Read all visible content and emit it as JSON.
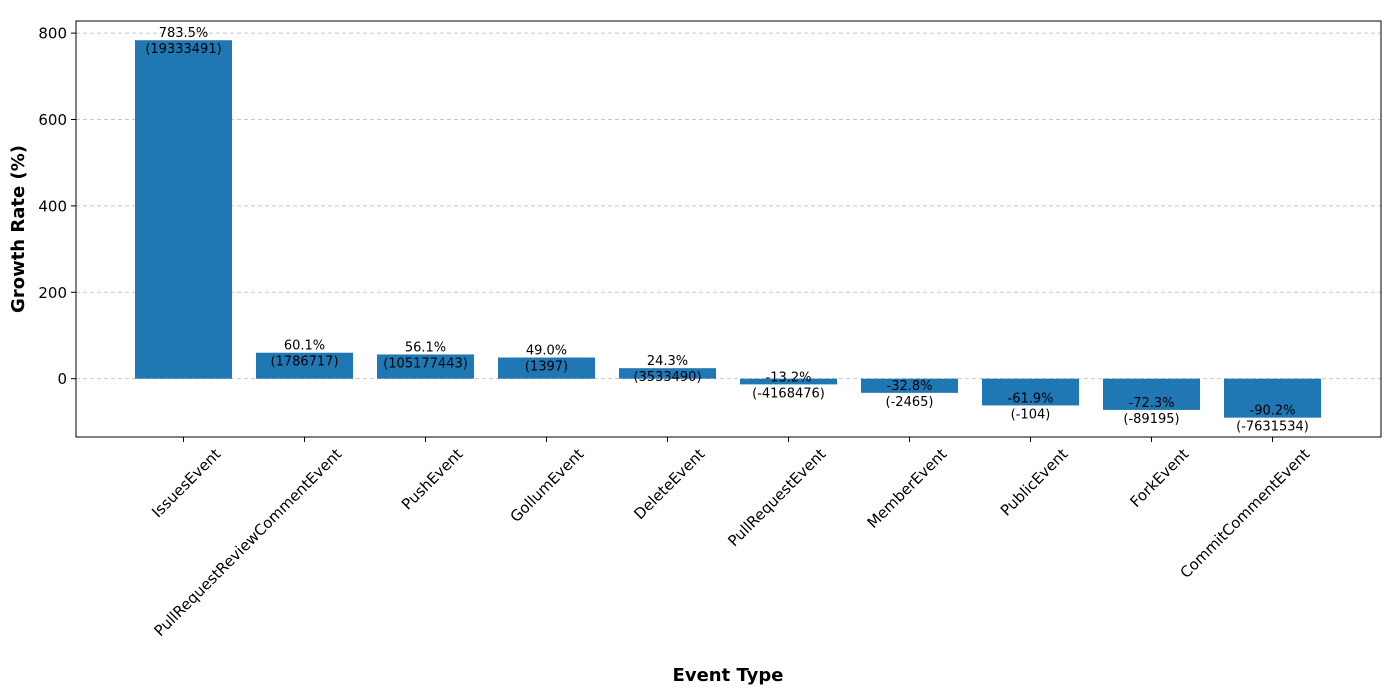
{
  "chart_data": {
    "type": "bar",
    "title": "",
    "xlabel": "Event Type",
    "ylabel": "Growth Rate (%)",
    "categories": [
      "IssuesEvent",
      "PullRequestReviewCommentEvent",
      "PushEvent",
      "GollumEvent",
      "DeleteEvent",
      "PullRequestEvent",
      "MemberEvent",
      "PublicEvent",
      "ForkEvent",
      "CommitCommentEvent"
    ],
    "values": [
      783.5,
      60.1,
      56.1,
      49.0,
      24.3,
      -13.2,
      -32.8,
      -61.9,
      -72.3,
      -90.2
    ],
    "value_labels": [
      "783.5%",
      "60.1%",
      "56.1%",
      "49.0%",
      "24.3%",
      "-13.2%",
      "-32.8%",
      "-61.9%",
      "-72.3%",
      "-90.2%"
    ],
    "absolute_changes": [
      "(19333491)",
      "(1786717)",
      "(105177443)",
      "(1397)",
      "(3533490)",
      "(-4168476)",
      "(-2465)",
      "(-104)",
      "(-89195)",
      "(-7631534)"
    ],
    "ylim": [
      -135,
      828
    ],
    "yticks": [
      0,
      200,
      400,
      600,
      800
    ],
    "grid": "y-dashed",
    "bar_color": "#1f77b4"
  }
}
